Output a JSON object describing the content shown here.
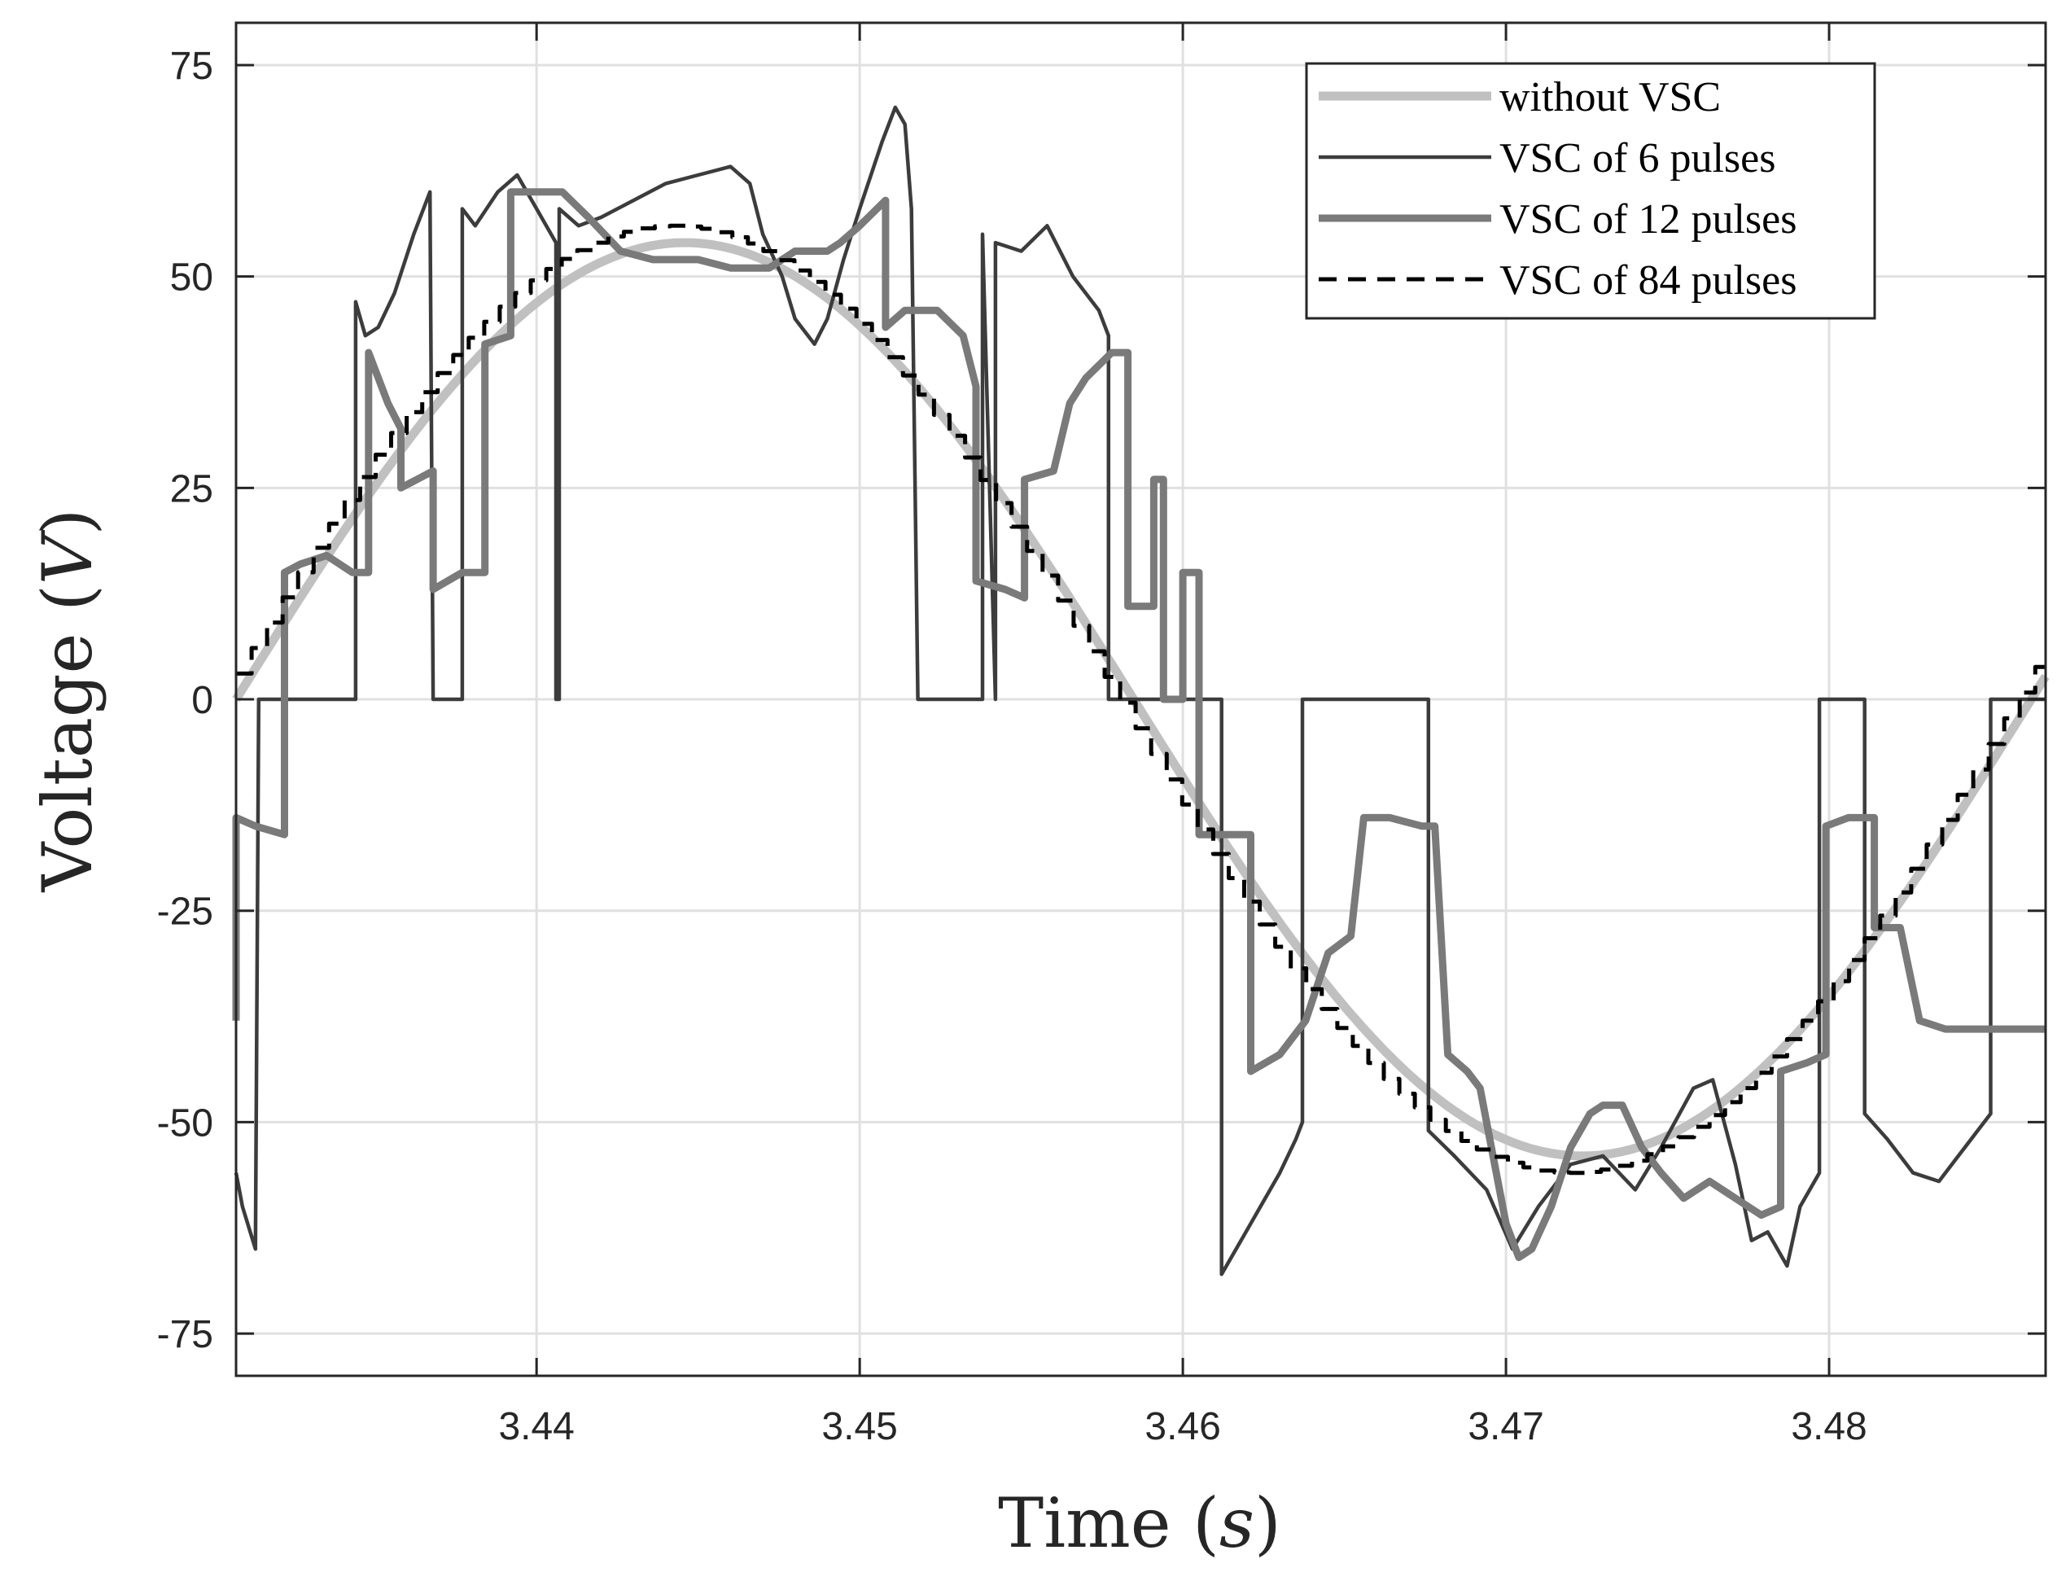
{
  "chart_data": {
    "type": "line",
    "title": "",
    "xlabel": "Time (s)",
    "ylabel": "Voltage (V)",
    "xlabel_text": "Time",
    "xlabel_var": "s",
    "ylabel_text": "Voltage",
    "ylabel_var": "V",
    "xlim": [
      3.4307,
      3.4867
    ],
    "ylim": [
      -80,
      80
    ],
    "xticks": [
      3.44,
      3.45,
      3.46,
      3.47,
      3.48
    ],
    "xtick_labels": [
      "3.44",
      "3.45",
      "3.46",
      "3.47",
      "3.48"
    ],
    "yticks": [
      75,
      50,
      25,
      0,
      -25,
      -50,
      -75
    ],
    "ytick_labels": [
      "75",
      "50",
      "25",
      "0",
      "-25",
      "-50",
      "-75"
    ],
    "grid": true,
    "legend_position": "top-right",
    "series": [
      {
        "name": "without VSC",
        "style": "solid",
        "color": "#c0c0c0",
        "kind": "sine",
        "amplitude": 54,
        "frequency_hz": 18,
        "zero_crossing_s": 3.4307
      },
      {
        "name": "VSC of 6 pulses",
        "style": "solid",
        "color": "#3c3c3c",
        "points": [
          [
            3.4307,
            -56
          ],
          [
            3.4309,
            -60
          ],
          [
            3.4313,
            -65
          ],
          [
            3.4314,
            0
          ],
          [
            3.4344,
            0
          ],
          [
            3.4344,
            47
          ],
          [
            3.4347,
            43
          ],
          [
            3.4351,
            44
          ],
          [
            3.4356,
            48
          ],
          [
            3.4362,
            55
          ],
          [
            3.4367,
            60
          ],
          [
            3.4368,
            0
          ],
          [
            3.4377,
            0
          ],
          [
            3.4377,
            58
          ],
          [
            3.4381,
            56
          ],
          [
            3.4388,
            60
          ],
          [
            3.4394,
            62
          ],
          [
            3.44,
            58
          ],
          [
            3.4406,
            54
          ],
          [
            3.4406,
            0
          ],
          [
            3.4407,
            0
          ],
          [
            3.4407,
            58
          ],
          [
            3.4413,
            56
          ],
          [
            3.442,
            57
          ],
          [
            3.443,
            59
          ],
          [
            3.444,
            61
          ],
          [
            3.445,
            62
          ],
          [
            3.446,
            63
          ],
          [
            3.4466,
            61
          ],
          [
            3.447,
            55
          ],
          [
            3.4476,
            50
          ],
          [
            3.448,
            45
          ],
          [
            3.4486,
            42
          ],
          [
            3.449,
            45
          ],
          [
            3.4495,
            52
          ],
          [
            3.45,
            58
          ],
          [
            3.4507,
            66
          ],
          [
            3.4511,
            70
          ],
          [
            3.4514,
            68
          ],
          [
            3.4516,
            58
          ],
          [
            3.4518,
            0
          ],
          [
            3.4538,
            0
          ],
          [
            3.4538,
            55
          ],
          [
            3.4542,
            0
          ],
          [
            3.4542,
            54
          ],
          [
            3.455,
            53
          ],
          [
            3.4558,
            56
          ],
          [
            3.4566,
            50
          ],
          [
            3.4574,
            46
          ],
          [
            3.4577,
            43
          ],
          [
            3.4577,
            0
          ],
          [
            3.4612,
            0
          ],
          [
            3.4612,
            -68
          ],
          [
            3.4618,
            -64
          ],
          [
            3.4624,
            -60
          ],
          [
            3.463,
            -56
          ],
          [
            3.4635,
            -52
          ],
          [
            3.4637,
            -50
          ],
          [
            3.4637,
            0
          ],
          [
            3.4676,
            0
          ],
          [
            3.4676,
            -51
          ],
          [
            3.4684,
            -54
          ],
          [
            3.4694,
            -58
          ],
          [
            3.4702,
            -65
          ],
          [
            3.471,
            -60
          ],
          [
            3.472,
            -55
          ],
          [
            3.473,
            -54
          ],
          [
            3.474,
            -58
          ],
          [
            3.4748,
            -53
          ],
          [
            3.4758,
            -46
          ],
          [
            3.4764,
            -45
          ],
          [
            3.4771,
            -55
          ],
          [
            3.4776,
            -64
          ],
          [
            3.4781,
            -63
          ],
          [
            3.4787,
            -67
          ],
          [
            3.4791,
            -60
          ],
          [
            3.4797,
            -56
          ],
          [
            3.4797,
            0
          ],
          [
            3.4811,
            0
          ],
          [
            3.4811,
            -49
          ],
          [
            3.4818,
            -52
          ],
          [
            3.4826,
            -56
          ],
          [
            3.4834,
            -57
          ],
          [
            3.484,
            -54
          ],
          [
            3.4846,
            -51
          ],
          [
            3.485,
            -49
          ],
          [
            3.485,
            0
          ],
          [
            3.4867,
            0
          ]
        ]
      },
      {
        "name": "VSC of 12 pulses",
        "style": "solid",
        "color": "#7a7a7a",
        "points": [
          [
            3.4307,
            -38
          ],
          [
            3.4307,
            -14
          ],
          [
            3.4313,
            -15
          ],
          [
            3.4322,
            -16
          ],
          [
            3.4322,
            15
          ],
          [
            3.4327,
            16
          ],
          [
            3.4335,
            17
          ],
          [
            3.4343,
            15
          ],
          [
            3.4348,
            15
          ],
          [
            3.4348,
            41
          ],
          [
            3.4354,
            35
          ],
          [
            3.4358,
            32
          ],
          [
            3.4358,
            25
          ],
          [
            3.4368,
            27
          ],
          [
            3.4368,
            13
          ],
          [
            3.4377,
            15
          ],
          [
            3.4384,
            15
          ],
          [
            3.4384,
            42
          ],
          [
            3.4392,
            43
          ],
          [
            3.4392,
            60
          ],
          [
            3.4401,
            60
          ],
          [
            3.4408,
            60
          ],
          [
            3.4416,
            57
          ],
          [
            3.4426,
            53
          ],
          [
            3.4436,
            52
          ],
          [
            3.4444,
            52
          ],
          [
            3.445,
            52
          ],
          [
            3.446,
            51
          ],
          [
            3.4466,
            51
          ],
          [
            3.4472,
            51
          ],
          [
            3.448,
            53
          ],
          [
            3.449,
            53
          ],
          [
            3.4494,
            54
          ],
          [
            3.45,
            56
          ],
          [
            3.4508,
            59
          ],
          [
            3.4508,
            44
          ],
          [
            3.4514,
            46
          ],
          [
            3.4524,
            46
          ],
          [
            3.4532,
            43
          ],
          [
            3.4536,
            37
          ],
          [
            3.4536,
            14
          ],
          [
            3.4545,
            13
          ],
          [
            3.4551,
            12
          ],
          [
            3.4551,
            26
          ],
          [
            3.456,
            27
          ],
          [
            3.4565,
            35
          ],
          [
            3.457,
            38
          ],
          [
            3.4578,
            41
          ],
          [
            3.4583,
            41
          ],
          [
            3.4583,
            11
          ],
          [
            3.4591,
            11
          ],
          [
            3.4591,
            26
          ],
          [
            3.4594,
            26
          ],
          [
            3.4594,
            0
          ],
          [
            3.46,
            0
          ],
          [
            3.46,
            15
          ],
          [
            3.4605,
            15
          ],
          [
            3.4605,
            -16
          ],
          [
            3.4612,
            -16
          ],
          [
            3.4621,
            -16
          ],
          [
            3.4621,
            -44
          ],
          [
            3.463,
            -42
          ],
          [
            3.4638,
            -38
          ],
          [
            3.4645,
            -30
          ],
          [
            3.4652,
            -28
          ],
          [
            3.4656,
            -14
          ],
          [
            3.4664,
            -14
          ],
          [
            3.4674,
            -15
          ],
          [
            3.4678,
            -15
          ],
          [
            3.4682,
            -42
          ],
          [
            3.4688,
            -44
          ],
          [
            3.4692,
            -46
          ],
          [
            3.4695,
            -52
          ],
          [
            3.47,
            -62
          ],
          [
            3.4704,
            -66
          ],
          [
            3.4708,
            -65
          ],
          [
            3.4714,
            -60
          ],
          [
            3.472,
            -53
          ],
          [
            3.4726,
            -49
          ],
          [
            3.473,
            -48
          ],
          [
            3.4736,
            -48
          ],
          [
            3.4742,
            -53
          ],
          [
            3.4748,
            -56
          ],
          [
            3.4755,
            -59
          ],
          [
            3.4763,
            -57
          ],
          [
            3.4771,
            -59
          ],
          [
            3.4779,
            -61
          ],
          [
            3.4785,
            -60
          ],
          [
            3.4785,
            -44
          ],
          [
            3.4793,
            -43
          ],
          [
            3.4799,
            -42
          ],
          [
            3.4799,
            -15
          ],
          [
            3.4806,
            -14
          ],
          [
            3.4814,
            -14
          ],
          [
            3.4814,
            -27
          ],
          [
            3.4822,
            -27
          ],
          [
            3.4828,
            -38
          ],
          [
            3.4836,
            -39
          ],
          [
            3.4844,
            -39
          ],
          [
            3.485,
            -39
          ],
          [
            3.4867,
            -39
          ]
        ]
      },
      {
        "name": "VSC of 84 pulses",
        "style": "dashed",
        "color": "#000000",
        "kind": "staircase",
        "amplitude": 56,
        "frequency_hz": 18,
        "zero_crossing_s": 3.4307,
        "step_s": 0.00048
      }
    ]
  }
}
